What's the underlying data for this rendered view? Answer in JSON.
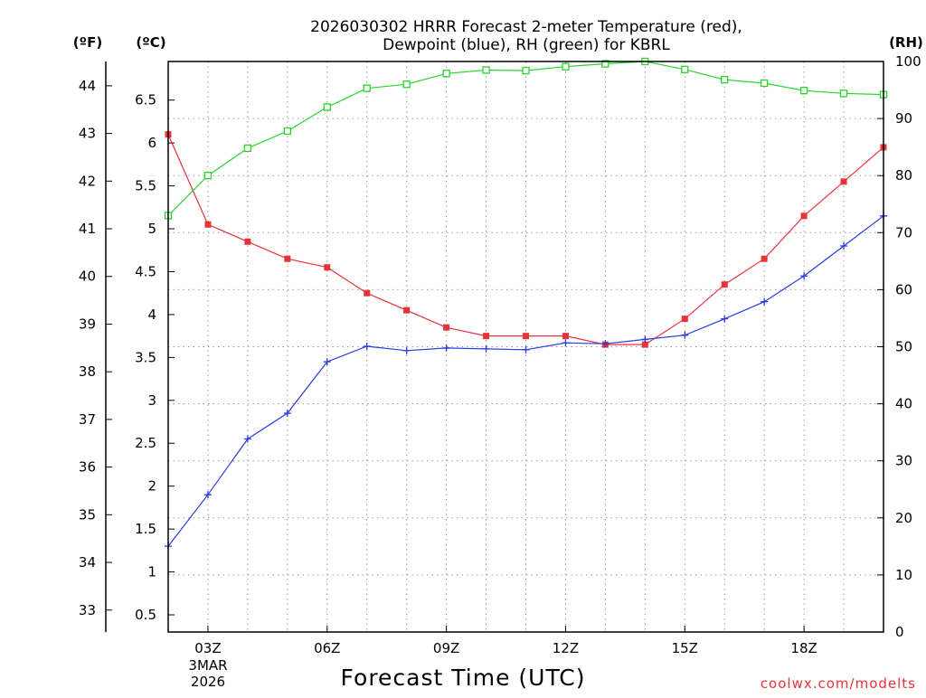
{
  "chart_data": {
    "type": "line",
    "title_line1": "2026030302 HRRR Forecast 2-meter Temperature (red),",
    "title_line2": "Dewpoint (blue), RH (green) for KBRL",
    "xlabel": "Forecast Time (UTC)",
    "credit": "coolwx.com/modelts",
    "units": {
      "fahrenheit": "(ºF)",
      "celsius": "(ºC)",
      "rh": "(RH)"
    },
    "x_hours": [
      2,
      3,
      4,
      5,
      6,
      7,
      8,
      9,
      10,
      11,
      12,
      13,
      14,
      15,
      16,
      17,
      18,
      19,
      20
    ],
    "xlim": [
      2,
      20
    ],
    "x_ticks": [
      {
        "hour": 3,
        "label": "03Z"
      },
      {
        "hour": 6,
        "label": "06Z"
      },
      {
        "hour": 9,
        "label": "09Z"
      },
      {
        "hour": 12,
        "label": "12Z"
      },
      {
        "hour": 15,
        "label": "15Z"
      },
      {
        "hour": 18,
        "label": "18Z"
      }
    ],
    "date_label": [
      "3MAR",
      "2026"
    ],
    "celsius_axis": {
      "ylim": [
        0.3,
        6.95
      ],
      "ticks": [
        "0.5",
        "1",
        "1.5",
        "2",
        "2.5",
        "3",
        "3.5",
        "4",
        "4.5",
        "5",
        "5.5",
        "6",
        "6.5"
      ]
    },
    "fahrenheit_axis": {
      "ticks": [
        "33",
        "34",
        "35",
        "36",
        "37",
        "38",
        "39",
        "40",
        "41",
        "42",
        "43",
        "44"
      ]
    },
    "rh_axis": {
      "ylim": [
        0,
        100
      ],
      "ticks": [
        "0",
        "10",
        "20",
        "30",
        "40",
        "50",
        "60",
        "70",
        "80",
        "90",
        "100"
      ]
    },
    "series": [
      {
        "name": "Temperature",
        "axis": "celsius",
        "color": "#e8323a",
        "marker": "filled-square",
        "values": [
          6.1,
          5.05,
          4.85,
          4.65,
          4.55,
          4.25,
          4.05,
          3.85,
          3.75,
          3.75,
          3.75,
          3.65,
          3.65,
          3.95,
          4.35,
          4.65,
          5.15,
          5.55,
          5.95
        ]
      },
      {
        "name": "Dewpoint",
        "axis": "celsius",
        "color": "#2a3be0",
        "marker": "plus",
        "values": [
          1.3,
          1.9,
          2.55,
          2.85,
          3.45,
          3.63,
          3.58,
          3.61,
          3.6,
          3.59,
          3.67,
          3.66,
          3.71,
          3.76,
          3.95,
          4.15,
          4.45,
          4.8,
          5.15
        ]
      },
      {
        "name": "RH",
        "axis": "rh",
        "color": "#2ad42a",
        "marker": "open-square",
        "values": [
          73,
          80,
          84.8,
          87.8,
          92,
          95.3,
          96,
          97.9,
          98.5,
          98.4,
          99.1,
          99.6,
          100,
          98.6,
          96.8,
          96.2,
          94.9,
          94.4,
          94.2
        ]
      }
    ]
  }
}
